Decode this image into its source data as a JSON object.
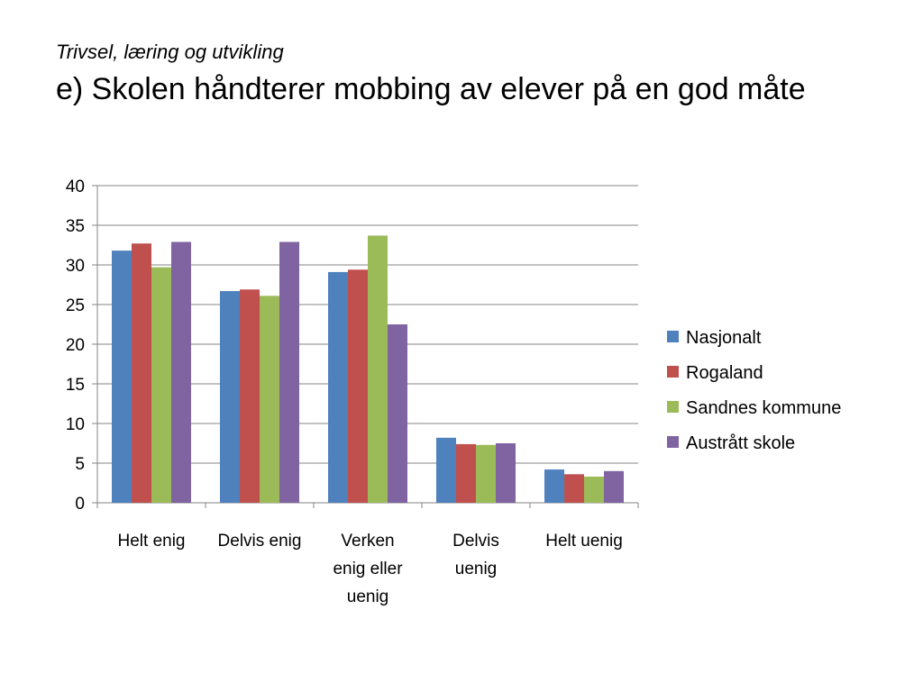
{
  "slide": {
    "subtitle": "Trivsel, læring og utvikling",
    "title": "e) Skolen håndterer mobbing av elever på en god måte"
  },
  "chart_data": {
    "type": "bar",
    "categories": [
      "Helt enig",
      "Delvis enig",
      "Verken enig eller uenig",
      "Delvis uenig",
      "Helt uenig"
    ],
    "category_lines": [
      [
        "Helt enig"
      ],
      [
        "Delvis enig"
      ],
      [
        "Verken",
        "enig eller",
        "uenig"
      ],
      [
        "Delvis",
        "uenig"
      ],
      [
        "Helt uenig"
      ]
    ],
    "series": [
      {
        "name": "Nasjonalt",
        "color": "#4F81BD",
        "values": [
          31.8,
          26.7,
          29.1,
          8.2,
          4.2
        ]
      },
      {
        "name": "Rogaland",
        "color": "#C0504D",
        "values": [
          32.7,
          26.9,
          29.4,
          7.4,
          3.6
        ]
      },
      {
        "name": "Sandnes kommune",
        "color": "#9BBB59",
        "values": [
          29.7,
          26.1,
          33.7,
          7.3,
          3.3
        ]
      },
      {
        "name": "Austrått skole",
        "color": "#8064A2",
        "values": [
          32.9,
          32.9,
          22.5,
          7.5,
          4.0
        ]
      }
    ],
    "ylim": [
      0,
      40
    ],
    "yticks": [
      0,
      5,
      10,
      15,
      20,
      25,
      30,
      35,
      40
    ],
    "grid": true,
    "legend_position": "right",
    "xlabel": "",
    "ylabel": ""
  }
}
